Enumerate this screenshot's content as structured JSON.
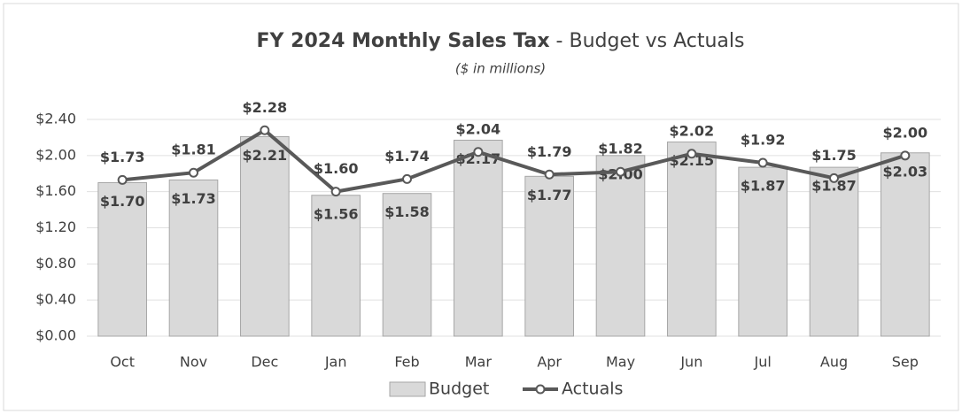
{
  "chart_data": {
    "type": "bar-line",
    "title": [
      "FY 2024 Monthly Sales Tax",
      " - Budget vs Actuals"
    ],
    "subtitle": "($ in millions)",
    "categories": [
      "Oct",
      "Nov",
      "Dec",
      "Jan",
      "Feb",
      "Mar",
      "Apr",
      "May",
      "Jun",
      "Jul",
      "Aug",
      "Sep"
    ],
    "series": [
      {
        "name": "Budget",
        "type": "bar",
        "color": "#d9d9d9",
        "values": [
          1.7,
          1.73,
          2.21,
          1.56,
          1.58,
          2.17,
          1.77,
          2.0,
          2.15,
          1.87,
          1.87,
          2.03
        ],
        "value_labels": [
          "$1.70",
          "$1.73",
          "$2.21",
          "$1.56",
          "$1.58",
          "$2.17",
          "$1.77",
          "$2.00",
          "$2.15",
          "$1.87",
          "$1.87",
          "$2.03"
        ]
      },
      {
        "name": "Actuals",
        "type": "line",
        "color": "#595959",
        "values": [
          1.73,
          1.81,
          2.28,
          1.6,
          1.74,
          2.04,
          1.79,
          1.82,
          2.02,
          1.92,
          1.75,
          2.0
        ],
        "value_labels": [
          "$1.73",
          "$1.81",
          "$2.28",
          "$1.60",
          "$1.74",
          "$2.04",
          "$1.79",
          "$1.82",
          "$2.02",
          "$1.92",
          "$1.75",
          "$2.00"
        ]
      }
    ],
    "ylim": [
      0,
      2.4
    ],
    "yticks": [
      {
        "value": 0,
        "label": "$0.00"
      },
      {
        "value": 0.4,
        "label": "$0.40"
      },
      {
        "value": 0.8,
        "label": "$0.80"
      },
      {
        "value": 1.2,
        "label": "$1.20"
      },
      {
        "value": 1.6,
        "label": "$1.60"
      },
      {
        "value": 2.0,
        "label": "$2.00"
      },
      {
        "value": 2.4,
        "label": "$2.40"
      }
    ],
    "grid": true,
    "legend": "bottom"
  }
}
